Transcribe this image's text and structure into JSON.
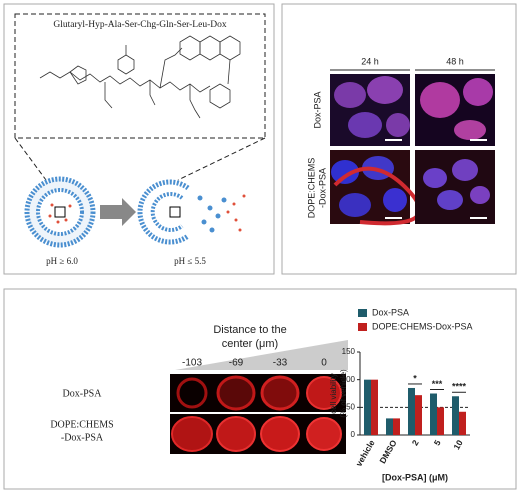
{
  "figure": {
    "structure_title": "Glutaryl-Hyp-Ala-Ser-Chg-Gln-Ser-Leu-Dox",
    "ph_labels": [
      "pH ≥ 6.0",
      "pH ≤ 5.5"
    ],
    "microscopy": {
      "columns": [
        "24 h",
        "48 h"
      ],
      "rows": [
        [
          "Dox-PSA"
        ],
        [
          "DOPE:CHEMS",
          "-Dox-PSA"
        ]
      ]
    },
    "spheroids": {
      "title": [
        "Distance to the",
        "center (μm)"
      ],
      "distances": [
        "-103",
        "-69",
        "-33",
        "0"
      ],
      "rows": [
        [
          "Dox-PSA"
        ],
        [
          "DOPE:CHEMS",
          "-Dox-PSA"
        ]
      ]
    }
  },
  "chart_data": {
    "type": "bar",
    "categories": [
      "vehicle",
      "DMSO",
      "2",
      "5",
      "10"
    ],
    "series": [
      {
        "name": "Dox-PSA",
        "color": "#1f5c6b",
        "values": [
          100,
          30,
          85,
          75,
          70
        ]
      },
      {
        "name": "DOPE:CHEMS-Dox-PSA",
        "color": "#c0201e",
        "values": [
          100,
          30,
          72,
          50,
          42
        ]
      }
    ],
    "ylabel": [
      "cell viability",
      "(% of vehicle)"
    ],
    "xlabel": "[Dox-PSA] (μM)",
    "ylim": [
      0,
      150
    ],
    "yticks": [
      0,
      50,
      100,
      150
    ],
    "reference_line": 50,
    "annotations": [
      {
        "label": "*",
        "category": "2"
      },
      {
        "label": "***",
        "category": "5"
      },
      {
        "label": "****",
        "category": "10"
      }
    ],
    "legend": "top"
  }
}
